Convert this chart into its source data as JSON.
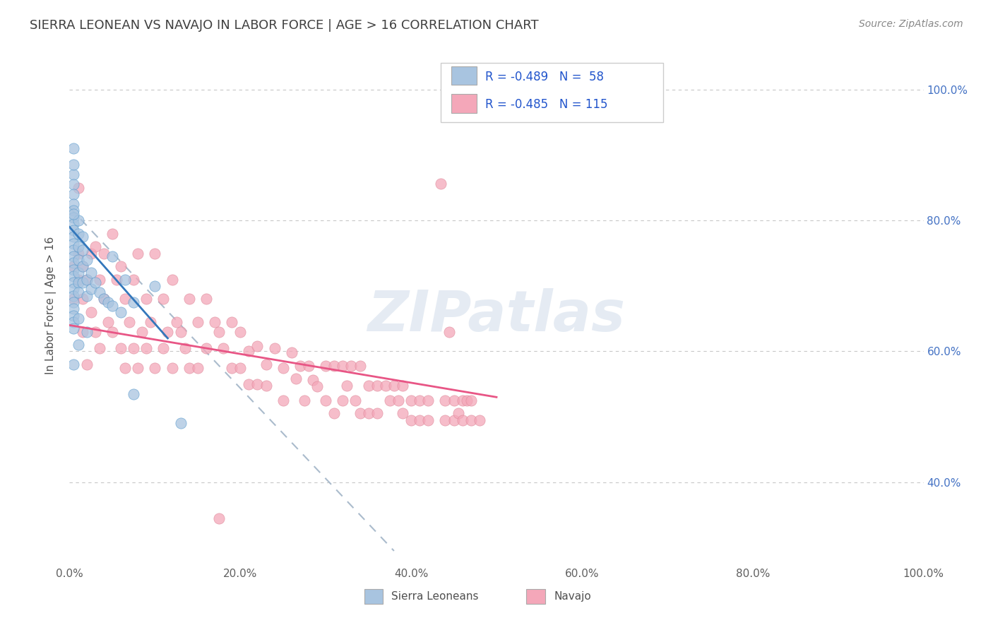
{
  "title": "SIERRA LEONEAN VS NAVAJO IN LABOR FORCE | AGE > 16 CORRELATION CHART",
  "source_text": "Source: ZipAtlas.com",
  "ylabel": "In Labor Force | Age > 16",
  "xlim": [
    0.0,
    1.0
  ],
  "ylim": [
    0.28,
    1.06
  ],
  "x_ticks": [
    0.0,
    0.2,
    0.4,
    0.6,
    0.8,
    1.0
  ],
  "x_tick_labels": [
    "0.0%",
    "20.0%",
    "40.0%",
    "60.0%",
    "80.0%",
    "100.0%"
  ],
  "y_ticks": [
    0.4,
    0.6,
    0.8,
    1.0
  ],
  "y_tick_labels": [
    "40.0%",
    "60.0%",
    "80.0%",
    "100.0%"
  ],
  "legend_r1": "R = -0.489",
  "legend_n1": "N =  58",
  "legend_r2": "R = -0.485",
  "legend_n2": "N = 115",
  "sierra_color": "#a8c4e0",
  "navajo_color": "#f4a7b9",
  "sierra_edge_color": "#5599cc",
  "navajo_edge_color": "#dd8899",
  "sierra_line_color": "#3377bb",
  "navajo_line_color": "#e85585",
  "dashed_line_color": "#aabbcc",
  "watermark": "ZIPatlas",
  "background_color": "#ffffff",
  "grid_color": "#c8c8c8",
  "title_color": "#404040",
  "axis_label_color": "#505050",
  "tick_label_color": "#606060",
  "right_tick_color": "#4472c4",
  "legend_r_color": "#2255cc",
  "legend_n_color": "#2255cc",
  "sierra_scatter": [
    [
      0.005,
      0.87
    ],
    [
      0.005,
      0.855
    ],
    [
      0.005,
      0.84
    ],
    [
      0.005,
      0.825
    ],
    [
      0.005,
      0.815
    ],
    [
      0.005,
      0.805
    ],
    [
      0.005,
      0.795
    ],
    [
      0.005,
      0.785
    ],
    [
      0.005,
      0.775
    ],
    [
      0.005,
      0.765
    ],
    [
      0.005,
      0.755
    ],
    [
      0.005,
      0.745
    ],
    [
      0.005,
      0.735
    ],
    [
      0.005,
      0.725
    ],
    [
      0.005,
      0.715
    ],
    [
      0.005,
      0.705
    ],
    [
      0.005,
      0.695
    ],
    [
      0.005,
      0.685
    ],
    [
      0.005,
      0.675
    ],
    [
      0.005,
      0.665
    ],
    [
      0.005,
      0.655
    ],
    [
      0.005,
      0.645
    ],
    [
      0.01,
      0.8
    ],
    [
      0.01,
      0.78
    ],
    [
      0.01,
      0.76
    ],
    [
      0.01,
      0.74
    ],
    [
      0.01,
      0.72
    ],
    [
      0.01,
      0.705
    ],
    [
      0.01,
      0.69
    ],
    [
      0.015,
      0.755
    ],
    [
      0.015,
      0.73
    ],
    [
      0.015,
      0.705
    ],
    [
      0.02,
      0.74
    ],
    [
      0.02,
      0.71
    ],
    [
      0.02,
      0.685
    ],
    [
      0.025,
      0.72
    ],
    [
      0.025,
      0.695
    ],
    [
      0.03,
      0.705
    ],
    [
      0.035,
      0.69
    ],
    [
      0.04,
      0.68
    ],
    [
      0.045,
      0.675
    ],
    [
      0.05,
      0.67
    ],
    [
      0.05,
      0.745
    ],
    [
      0.06,
      0.66
    ],
    [
      0.065,
      0.71
    ],
    [
      0.075,
      0.675
    ],
    [
      0.075,
      0.535
    ],
    [
      0.1,
      0.7
    ],
    [
      0.005,
      0.635
    ],
    [
      0.01,
      0.61
    ],
    [
      0.005,
      0.58
    ],
    [
      0.005,
      0.91
    ],
    [
      0.005,
      0.885
    ],
    [
      0.005,
      0.81
    ],
    [
      0.015,
      0.775
    ],
    [
      0.01,
      0.65
    ],
    [
      0.02,
      0.63
    ],
    [
      0.13,
      0.49
    ]
  ],
  "navajo_scatter": [
    [
      0.005,
      0.73
    ],
    [
      0.005,
      0.68
    ],
    [
      0.01,
      0.75
    ],
    [
      0.01,
      0.71
    ],
    [
      0.01,
      0.85
    ],
    [
      0.015,
      0.73
    ],
    [
      0.015,
      0.68
    ],
    [
      0.015,
      0.63
    ],
    [
      0.02,
      0.58
    ],
    [
      0.02,
      0.71
    ],
    [
      0.025,
      0.75
    ],
    [
      0.025,
      0.66
    ],
    [
      0.03,
      0.76
    ],
    [
      0.03,
      0.63
    ],
    [
      0.035,
      0.71
    ],
    [
      0.035,
      0.605
    ],
    [
      0.04,
      0.68
    ],
    [
      0.04,
      0.75
    ],
    [
      0.045,
      0.645
    ],
    [
      0.05,
      0.78
    ],
    [
      0.05,
      0.63
    ],
    [
      0.055,
      0.71
    ],
    [
      0.06,
      0.73
    ],
    [
      0.06,
      0.605
    ],
    [
      0.065,
      0.68
    ],
    [
      0.065,
      0.575
    ],
    [
      0.07,
      0.645
    ],
    [
      0.075,
      0.71
    ],
    [
      0.075,
      0.605
    ],
    [
      0.08,
      0.75
    ],
    [
      0.08,
      0.575
    ],
    [
      0.085,
      0.63
    ],
    [
      0.09,
      0.68
    ],
    [
      0.09,
      0.605
    ],
    [
      0.095,
      0.645
    ],
    [
      0.1,
      0.75
    ],
    [
      0.1,
      0.575
    ],
    [
      0.11,
      0.68
    ],
    [
      0.11,
      0.605
    ],
    [
      0.115,
      0.63
    ],
    [
      0.12,
      0.71
    ],
    [
      0.12,
      0.575
    ],
    [
      0.125,
      0.645
    ],
    [
      0.13,
      0.63
    ],
    [
      0.135,
      0.605
    ],
    [
      0.14,
      0.68
    ],
    [
      0.14,
      0.575
    ],
    [
      0.15,
      0.645
    ],
    [
      0.15,
      0.575
    ],
    [
      0.16,
      0.68
    ],
    [
      0.16,
      0.605
    ],
    [
      0.17,
      0.645
    ],
    [
      0.175,
      0.63
    ],
    [
      0.18,
      0.605
    ],
    [
      0.19,
      0.645
    ],
    [
      0.19,
      0.575
    ],
    [
      0.2,
      0.63
    ],
    [
      0.2,
      0.575
    ],
    [
      0.21,
      0.6
    ],
    [
      0.21,
      0.55
    ],
    [
      0.22,
      0.608
    ],
    [
      0.22,
      0.55
    ],
    [
      0.23,
      0.58
    ],
    [
      0.23,
      0.548
    ],
    [
      0.24,
      0.605
    ],
    [
      0.25,
      0.575
    ],
    [
      0.25,
      0.525
    ],
    [
      0.26,
      0.598
    ],
    [
      0.265,
      0.558
    ],
    [
      0.27,
      0.578
    ],
    [
      0.275,
      0.525
    ],
    [
      0.28,
      0.578
    ],
    [
      0.285,
      0.556
    ],
    [
      0.29,
      0.546
    ],
    [
      0.3,
      0.578
    ],
    [
      0.3,
      0.525
    ],
    [
      0.31,
      0.578
    ],
    [
      0.31,
      0.505
    ],
    [
      0.32,
      0.578
    ],
    [
      0.32,
      0.525
    ],
    [
      0.325,
      0.548
    ],
    [
      0.33,
      0.578
    ],
    [
      0.335,
      0.525
    ],
    [
      0.34,
      0.578
    ],
    [
      0.34,
      0.505
    ],
    [
      0.35,
      0.548
    ],
    [
      0.35,
      0.505
    ],
    [
      0.36,
      0.548
    ],
    [
      0.36,
      0.505
    ],
    [
      0.37,
      0.548
    ],
    [
      0.375,
      0.525
    ],
    [
      0.38,
      0.548
    ],
    [
      0.385,
      0.525
    ],
    [
      0.39,
      0.548
    ],
    [
      0.39,
      0.505
    ],
    [
      0.4,
      0.525
    ],
    [
      0.4,
      0.495
    ],
    [
      0.41,
      0.525
    ],
    [
      0.41,
      0.495
    ],
    [
      0.42,
      0.525
    ],
    [
      0.42,
      0.495
    ],
    [
      0.435,
      0.856
    ],
    [
      0.44,
      0.525
    ],
    [
      0.44,
      0.495
    ],
    [
      0.445,
      0.63
    ],
    [
      0.45,
      0.525
    ],
    [
      0.45,
      0.495
    ],
    [
      0.455,
      0.505
    ],
    [
      0.46,
      0.525
    ],
    [
      0.46,
      0.495
    ],
    [
      0.465,
      0.525
    ],
    [
      0.47,
      0.495
    ],
    [
      0.47,
      0.525
    ],
    [
      0.48,
      0.495
    ],
    [
      0.175,
      0.345
    ]
  ],
  "sierra_trendline": [
    [
      0.0,
      0.79
    ],
    [
      0.115,
      0.62
    ]
  ],
  "navajo_trendline": [
    [
      0.0,
      0.64
    ],
    [
      0.5,
      0.53
    ]
  ],
  "dashed_line": [
    [
      0.0,
      0.82
    ],
    [
      0.38,
      0.295
    ]
  ]
}
